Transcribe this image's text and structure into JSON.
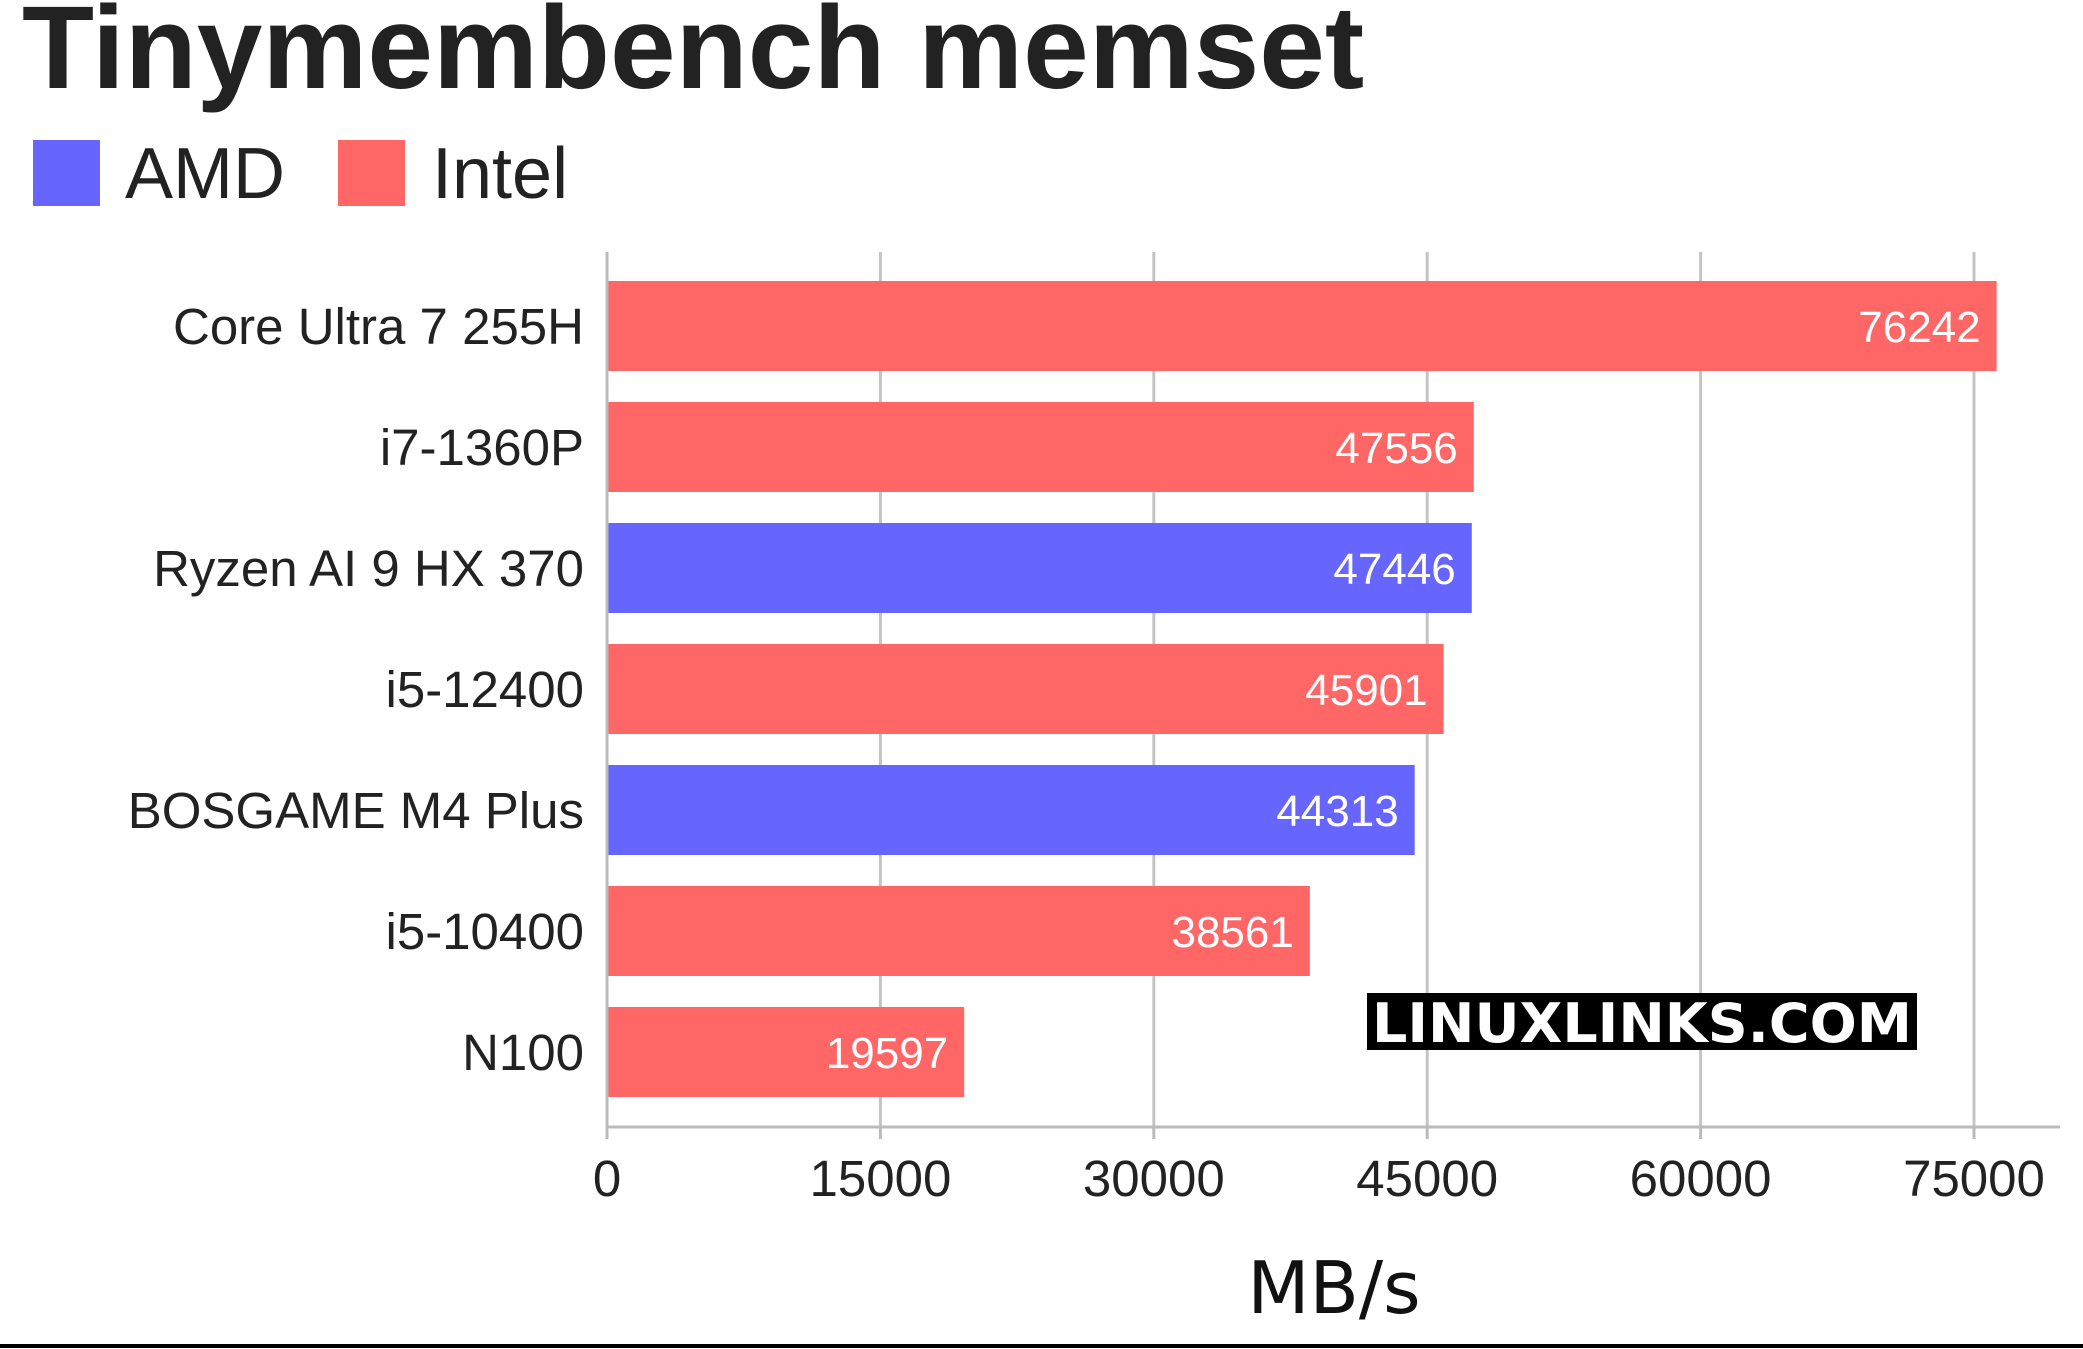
{
  "chart_data": {
    "type": "bar",
    "orientation": "horizontal",
    "title": "Tinymembench memset",
    "xlabel": "MB/s",
    "ylabel": "",
    "xlim": [
      0,
      78000
    ],
    "ticks": [
      0,
      15000,
      30000,
      45000,
      60000,
      75000
    ],
    "grid": true,
    "legend": {
      "placement": "top-left",
      "entries": [
        {
          "name": "AMD",
          "color": "#6666ff"
        },
        {
          "name": "Intel",
          "color": "#ff6666"
        }
      ]
    },
    "categories": [
      "Core Ultra 7 255H",
      "i7-1360P",
      "Ryzen AI 9 HX 370",
      "i5-12400",
      "BOSGAME M4 Plus",
      "i5-10400",
      "N100"
    ],
    "values": [
      76242,
      47556,
      47446,
      45901,
      44313,
      38561,
      19597
    ],
    "series_of_bar": [
      "Intel",
      "Intel",
      "AMD",
      "Intel",
      "AMD",
      "Intel",
      "Intel"
    ]
  },
  "watermark": "LINUXLINKS.COM"
}
